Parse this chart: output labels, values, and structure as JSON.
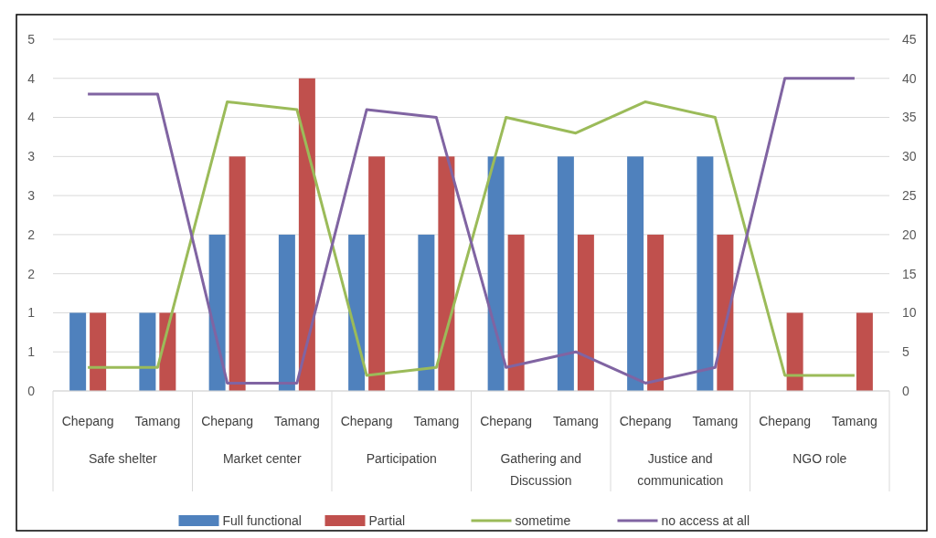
{
  "chart_data": {
    "type": "bar",
    "categories": [
      "Chepang",
      "Tamang",
      "Chepang",
      "Tamang",
      "Chepang",
      "Tamang",
      "Chepang",
      "Tamang",
      "Chepang",
      "Tamang",
      "Chepang",
      "Tamang"
    ],
    "annotations": [
      "Safe shelter",
      "Market center",
      "Participation",
      "Gathering and Discussion",
      "Justice and communication",
      "NGO role"
    ],
    "series": [
      {
        "name": "Full functional",
        "color": "#4f81bd",
        "values": [
          1,
          1,
          2,
          2,
          2,
          2,
          3,
          3,
          3,
          3,
          0,
          0
        ]
      },
      {
        "name": "Partial",
        "color": "#c0504d",
        "values": [
          1,
          1,
          3,
          4,
          3,
          3,
          2,
          2,
          2,
          2,
          1,
          1
        ]
      },
      {
        "name": "sometime",
        "type": "line",
        "axis": "y2",
        "color": "#9bbb59",
        "values": [
          3,
          3,
          37,
          36,
          2,
          3,
          35,
          33,
          37,
          35,
          2,
          2
        ]
      },
      {
        "name": "no access at all",
        "type": "line",
        "axis": "y2",
        "color": "#8064a2",
        "values": [
          38,
          38,
          1,
          1,
          36,
          35,
          3,
          5,
          1,
          3,
          40,
          40
        ]
      }
    ],
    "ylim": [
      0,
      4.5
    ],
    "yticks": [
      0,
      {
        "value": 0.5,
        "label": "1"
      },
      1,
      {
        "value": 1.5,
        "label": "2"
      },
      2,
      {
        "value": 2.5,
        "label": "3"
      },
      3,
      {
        "value": 3.5,
        "label": "4"
      },
      4,
      {
        "value": 4.5,
        "label": "5"
      }
    ],
    "y2lim": [
      0,
      45
    ],
    "y2ticks": [
      0,
      5,
      10,
      15,
      20,
      25,
      30,
      35,
      40,
      45
    ],
    "grid": "y",
    "legend": "bottom",
    "marker": "none",
    "line_style": "solid"
  }
}
